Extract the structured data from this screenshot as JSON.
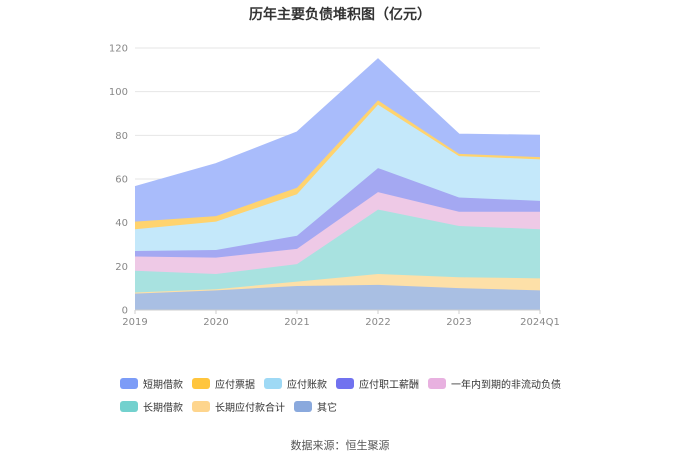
{
  "chart_data": {
    "type": "area",
    "stacked": true,
    "title": "历年主要负债堆积图（亿元）",
    "categories": [
      "2019",
      "2020",
      "2021",
      "2022",
      "2023",
      "2024Q1"
    ],
    "ylim": [
      0,
      120
    ],
    "yticks": [
      0,
      20,
      40,
      60,
      80,
      100,
      120
    ],
    "grid": true,
    "legend_position": "bottom",
    "series": [
      {
        "name": "其它",
        "color": "#a9bfe3",
        "values": [
          7.5,
          9.0,
          11.0,
          11.5,
          10.0,
          9.0
        ]
      },
      {
        "name": "长期应付款合计",
        "color": "#fde0a8",
        "values": [
          0.5,
          0.5,
          2.0,
          5.0,
          5.0,
          5.5
        ]
      },
      {
        "name": "长期借款",
        "color": "#a8e2e0",
        "values": [
          10.0,
          7.0,
          8.0,
          29.5,
          23.5,
          22.5
        ]
      },
      {
        "name": "一年内到期的非流动负债",
        "color": "#eec9e6",
        "values": [
          6.5,
          7.5,
          7.0,
          8.0,
          6.5,
          8.0
        ]
      },
      {
        "name": "应付职工薪酬",
        "color": "#a4a8f2",
        "values": [
          2.5,
          3.5,
          6.0,
          11.0,
          6.5,
          5.0
        ]
      },
      {
        "name": "应付账款",
        "color": "#c4e8fa",
        "values": [
          10.0,
          13.0,
          19.0,
          29.0,
          19.0,
          19.0
        ]
      },
      {
        "name": "应付票据",
        "color": "#ffd36e",
        "values": [
          3.5,
          2.5,
          3.0,
          2.0,
          1.0,
          1.0
        ]
      },
      {
        "name": "短期借款",
        "color": "#a9bcfb",
        "values": [
          16.0,
          24.0,
          25.5,
          19.0,
          9.0,
          10.0
        ]
      }
    ],
    "legend_markers": {
      "短期借款": "#7c9cf7",
      "应付票据": "#ffc53d",
      "应付账款": "#9ed9f5",
      "应付职工薪酬": "#7172ef",
      "一年内到期的非流动负债": "#e8b1e0",
      "长期借款": "#73d1ce",
      "长期应付款合计": "#fed58d",
      "其它": "#8aa9dd"
    },
    "legend_order": [
      [
        "短期借款",
        "应付票据",
        "应付账款",
        "应付职工薪酬",
        "一年内到期的非流动负债"
      ],
      [
        "长期借款",
        "长期应付款合计",
        "其它"
      ]
    ]
  },
  "source": "数据来源：恒生聚源"
}
